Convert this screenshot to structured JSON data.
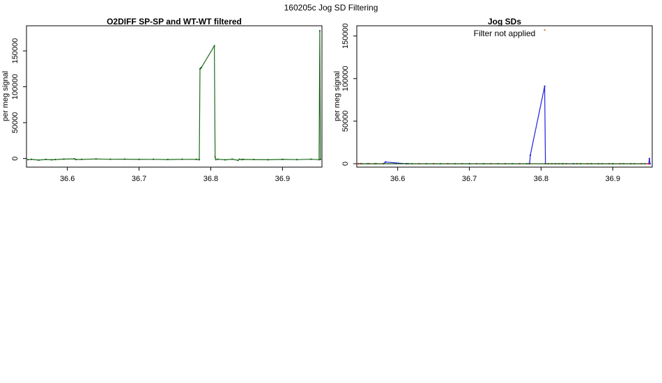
{
  "figure": {
    "title": "160205c   Jog SD Filtering"
  },
  "colors": {
    "green": "#1b6b1b",
    "blue": "#1f1fe0",
    "red": "#cc2222",
    "orange": "#e07020",
    "frame": "#000000"
  },
  "chart_data": [
    {
      "type": "line",
      "title": "O2DIFF SP-SP and WT-WT filtered",
      "xlabel": "",
      "ylabel": "per meg signal",
      "xlim": [
        36.543,
        36.955
      ],
      "ylim": [
        -12000,
        185000
      ],
      "xticks": [
        36.6,
        36.7,
        36.8,
        36.9
      ],
      "xtick_labels": [
        "36.6",
        "36.7",
        "36.8",
        "36.9"
      ],
      "yticks": [
        0,
        50000,
        100000,
        150000
      ],
      "ytick_labels": [
        "0",
        "50000",
        "100000",
        "150000"
      ],
      "grid": false,
      "series": [
        {
          "color": "#1b6b1b",
          "x": [
            36.545,
            36.55,
            36.56,
            36.57,
            36.578,
            36.583,
            36.595,
            36.61,
            36.612,
            36.62,
            36.64,
            36.66,
            36.68,
            36.7,
            36.72,
            36.74,
            36.76,
            36.78,
            36.784,
            36.785,
            36.786,
            36.787,
            36.805,
            36.806,
            36.807,
            36.81,
            36.82,
            36.83,
            36.838,
            36.84,
            36.843,
            36.845,
            36.86,
            36.88,
            36.9,
            36.92,
            36.94,
            36.951,
            36.952,
            36.953
          ],
          "y": [
            -1500,
            -1200,
            -2200,
            -1300,
            -1800,
            -1400,
            -800,
            -500,
            -1400,
            -1200,
            -600,
            -1000,
            -900,
            -1200,
            -1100,
            -1400,
            -1100,
            -1200,
            -1600,
            125000,
            126000,
            127000,
            157000,
            2000,
            -1500,
            -1000,
            -1800,
            -900,
            -2500,
            -1000,
            -1500,
            -1200,
            -1400,
            -1700,
            -1200,
            -1500,
            -1000,
            -1600,
            178000,
            -1200
          ]
        }
      ]
    },
    {
      "type": "line",
      "title": "Jog SDs",
      "xlabel": "",
      "ylabel": "per meg signal",
      "xlim": [
        36.543,
        36.955
      ],
      "ylim": [
        -4000,
        162000
      ],
      "xticks": [
        36.6,
        36.7,
        36.8,
        36.9
      ],
      "xtick_labels": [
        "36.6",
        "36.7",
        "36.8",
        "36.9"
      ],
      "yticks": [
        0,
        50000,
        100000,
        150000
      ],
      "ytick_labels": [
        "0",
        "50000",
        "100000",
        "150000"
      ],
      "grid": false,
      "annotation": "Filter not applied",
      "series": [
        {
          "color": "#1f1fe0",
          "x": [
            36.545,
            36.58,
            36.583,
            36.612,
            36.613,
            36.7,
            36.784,
            36.785,
            36.805,
            36.806,
            36.83,
            36.845,
            36.9,
            36.95,
            36.951,
            36.952
          ],
          "y": [
            0,
            0,
            2000,
            0,
            0,
            0,
            0,
            10000,
            91000,
            0,
            0,
            0,
            0,
            0,
            6000,
            0
          ]
        },
        {
          "color": "#cc2222",
          "x": [
            36.545,
            36.55,
            36.56,
            36.57,
            36.58,
            36.615,
            36.63,
            36.65,
            36.67,
            36.69,
            36.71,
            36.73,
            36.75,
            36.77,
            36.783,
            36.806,
            36.815,
            36.825,
            36.835,
            36.85,
            36.865,
            36.88,
            36.895,
            36.91,
            36.925,
            36.94,
            36.95
          ],
          "y": [
            0,
            0,
            0,
            0,
            0,
            0,
            0,
            0,
            0,
            0,
            0,
            0,
            0,
            0,
            0,
            0,
            0,
            0,
            0,
            0,
            0,
            0,
            0,
            0,
            0,
            0,
            0
          ]
        },
        {
          "color": "#1b6b1b",
          "x": [
            36.548,
            36.558,
            36.568,
            36.62,
            36.64,
            36.66,
            36.68,
            36.7,
            36.72,
            36.74,
            36.76,
            36.78,
            36.81,
            36.82,
            36.83,
            36.855,
            36.87,
            36.885,
            36.9,
            36.915,
            36.93,
            36.945
          ],
          "y": [
            0,
            0,
            0,
            0,
            0,
            0,
            0,
            0,
            0,
            0,
            0,
            0,
            0,
            0,
            0,
            0,
            0,
            0,
            0,
            0,
            0,
            0
          ]
        },
        {
          "color": "#e07020",
          "x": [
            36.805
          ],
          "y": [
            157000
          ]
        }
      ]
    }
  ]
}
